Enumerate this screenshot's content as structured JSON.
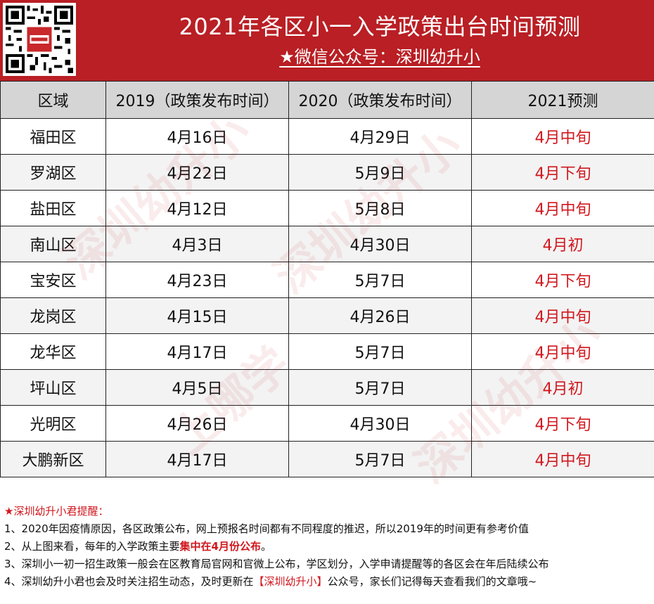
{
  "header": {
    "title": "2021年各区小一入学政策出台时间预测",
    "subtitle": "★微信公众号：深圳幼升小",
    "qr_icon": "qr-code-icon",
    "accent_color": "#b91f24"
  },
  "table": {
    "columns": [
      "区域",
      "2019（政策发布时间）",
      "2020（政策发布时间）",
      "2021预测"
    ],
    "rows": [
      [
        "福田区",
        "4月16日",
        "4月29日",
        "4月中旬"
      ],
      [
        "罗湖区",
        "4月22日",
        "5月9日",
        "4月下旬"
      ],
      [
        "盐田区",
        "4月12日",
        "5月8日",
        "4月中旬"
      ],
      [
        "南山区",
        "4月3日",
        "4月30日",
        "4月初"
      ],
      [
        "宝安区",
        "4月23日",
        "5月7日",
        "4月下旬"
      ],
      [
        "龙岗区",
        "4月15日",
        "4月26日",
        "4月中旬"
      ],
      [
        "龙华区",
        "4月17日",
        "5月7日",
        "4月中旬"
      ],
      [
        "坪山区",
        "4月5日",
        "5月7日",
        "4月初"
      ],
      [
        "光明区",
        "4月26日",
        "4月30日",
        "4月下旬"
      ],
      [
        "大鹏新区",
        "4月17日",
        "5月7日",
        "4月中旬"
      ]
    ],
    "prediction_color": "#d0181e"
  },
  "notes": {
    "heading": "★深圳幼升小君提醒：",
    "line1": "1、2020年因疫情原因，各区政策公布，网上预报名时间都有不同程度的推迟，所以2019年的时间更有参考价值",
    "line2_pre": "2、从上图来看，每年的入学政策主要",
    "line2_highlight": "集中在4月份公布",
    "line2_post": "。",
    "line3": "3、深圳小一初一招生政策一般会在区教育局官网和官微上公布，学区划分，入学申请提醒等的各区会在年后陆续公布",
    "line4_pre": "4、深圳幼升小君也会及时关注招生动态，及时更新在",
    "line4_highlight": "【深圳幼升小】",
    "line4_post": "公众号，家长们记得每天查看我们的文章哦~"
  },
  "watermark": {
    "text1": "深圳幼升小",
    "text2": "上哪学"
  }
}
